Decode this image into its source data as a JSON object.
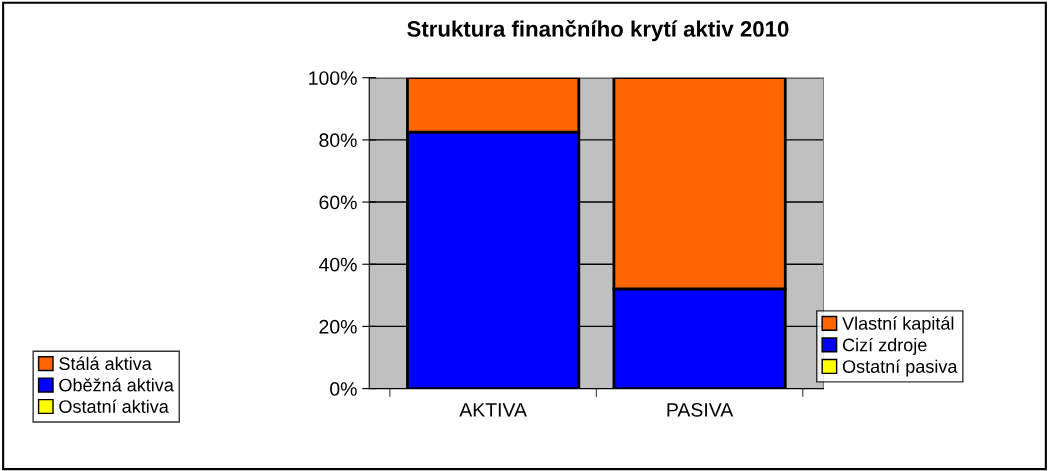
{
  "chart_data": {
    "type": "bar",
    "title": "Struktura finančního krytí aktiv 2010",
    "categories": [
      "AKTIVA",
      "PASIVA"
    ],
    "stacked": true,
    "legend": "bottom",
    "series": [
      {
        "name": "Ostatní aktiva",
        "color": "#ffff00",
        "values": [
          0,
          null
        ]
      },
      {
        "name": "Oběžná aktiva",
        "color": "#0000ff",
        "values": [
          82.5,
          null
        ]
      },
      {
        "name": "Stálá aktiva",
        "color": "#ff6600",
        "values": [
          17.5,
          null
        ]
      },
      {
        "name": "Ostatní pasiva",
        "color": "#ffff00",
        "values": [
          null,
          0
        ]
      },
      {
        "name": "Cizí zdroje",
        "color": "#0000ff",
        "values": [
          null,
          32.1
        ]
      },
      {
        "name": "Vlastní kapitál",
        "color": "#ff6600",
        "values": [
          null,
          67.9
        ]
      }
    ],
    "ylim": [
      0,
      100
    ],
    "yticks": [
      {
        "value": 0,
        "label": "0%"
      },
      {
        "value": 20,
        "label": "20%"
      },
      {
        "value": 40,
        "label": "40%"
      },
      {
        "value": 60,
        "label": "60%"
      },
      {
        "value": 80,
        "label": "80%"
      },
      {
        "value": 100,
        "label": "100%"
      }
    ],
    "grid": "y"
  }
}
